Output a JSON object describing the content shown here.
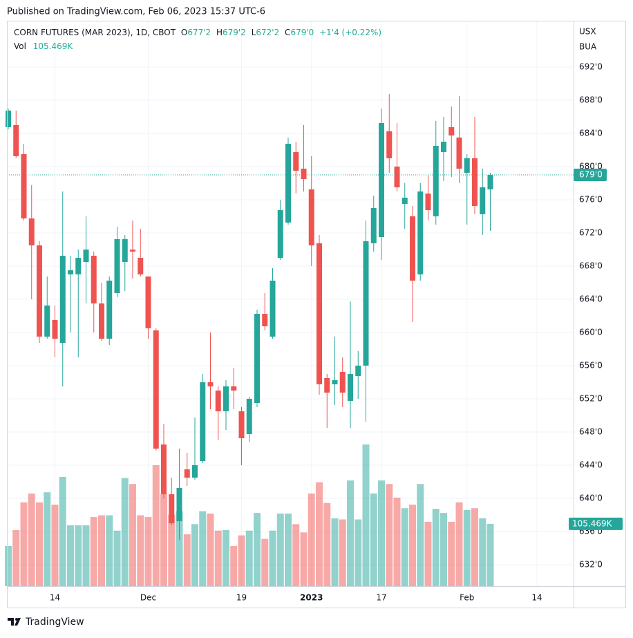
{
  "header": {
    "published": "Published on TradingView.com, Feb 06, 2023 15:37 UTC-6",
    "symbol": "CORN FUTURES (MAR 2023), 1D, CBOT",
    "o_label": "O",
    "o": "677'2",
    "h_label": "H",
    "h": "679'2",
    "l_label": "L",
    "l": "672'2",
    "c_label": "C",
    "c": "679'0",
    "change": "+1'4 (+0.22%)",
    "vol_label": "Vol",
    "vol": "105.469K",
    "currency": "USX",
    "unit": "BUA"
  },
  "footer": {
    "brand": "TradingView"
  },
  "chart_data": {
    "type": "candlestick",
    "up_color": "#26a69a",
    "down_color": "#ef5350",
    "grid": true,
    "ylim": [
      629.42,
      697.58
    ],
    "yticks": [
      {
        "value": 692,
        "label": "692'0"
      },
      {
        "value": 688,
        "label": "688'0"
      },
      {
        "value": 684,
        "label": "684'0"
      },
      {
        "value": 680,
        "label": "680'0"
      },
      {
        "value": 676,
        "label": "676'0"
      },
      {
        "value": 672,
        "label": "672'0"
      },
      {
        "value": 668,
        "label": "668'0"
      },
      {
        "value": 664,
        "label": "664'0"
      },
      {
        "value": 660,
        "label": "660'0"
      },
      {
        "value": 656,
        "label": "656'0"
      },
      {
        "value": 652,
        "label": "652'0"
      },
      {
        "value": 648,
        "label": "648'0"
      },
      {
        "value": 644,
        "label": "644'0"
      },
      {
        "value": 640,
        "label": "640'0"
      },
      {
        "value": 636,
        "label": "636'0"
      },
      {
        "value": 632,
        "label": "632'0"
      }
    ],
    "xticks": [
      {
        "value": 6,
        "label": "14"
      },
      {
        "value": 18,
        "label": "Dec"
      },
      {
        "value": 30,
        "label": "19"
      },
      {
        "value": 39,
        "label": "2023"
      },
      {
        "value": 48,
        "label": "17"
      },
      {
        "value": 59,
        "label": "Feb"
      },
      {
        "value": 68,
        "label": "14"
      }
    ],
    "open": [
      684.75,
      685,
      681.5,
      673.75,
      670.5,
      659.5,
      661.5,
      658.75,
      667,
      667,
      668.5,
      669.25,
      663.5,
      659.25,
      664.75,
      668.5,
      670,
      669,
      666.75,
      660.25,
      646.5,
      640.5,
      637.25,
      643.5,
      642.5,
      644.5,
      654,
      653,
      650.5,
      653.5,
      650.5,
      647.75,
      651.5,
      662.25,
      659.5,
      669,
      673.25,
      681.75,
      679.75,
      677.25,
      670.75,
      654.5,
      653.75,
      655.25,
      651.75,
      654.75,
      656,
      670.75,
      671.5,
      684.25,
      680,
      675.5,
      674,
      667,
      676.75,
      674,
      681.75,
      684.75,
      683.5,
      679.25,
      681,
      674.25,
      677.25
    ],
    "high": [
      687,
      686.75,
      682.75,
      677.75,
      671,
      666.75,
      663.25,
      677,
      669.25,
      670,
      674,
      669.75,
      666,
      666.75,
      672.75,
      671.75,
      673.5,
      672.5,
      666.75,
      660.5,
      649,
      642.5,
      646,
      645.5,
      649.75,
      655,
      660,
      653.5,
      654.25,
      655.75,
      651,
      652.25,
      662.75,
      664.75,
      667.75,
      676,
      683.5,
      683,
      685,
      681.25,
      671.75,
      655,
      659.5,
      657,
      663.75,
      657.75,
      673.5,
      676.5,
      687,
      688.75,
      685.25,
      678,
      675.25,
      678,
      679,
      685.5,
      686,
      687.25,
      688.5,
      681.5,
      686,
      679.75,
      679.25
    ],
    "low": [
      684.5,
      681,
      673.5,
      664,
      658.75,
      659.25,
      657,
      653.5,
      660,
      657,
      663.5,
      660,
      659,
      658.5,
      664.25,
      665,
      666.5,
      666.75,
      659.25,
      645.75,
      640,
      636.75,
      635,
      641.5,
      642.25,
      644.25,
      650.75,
      647,
      648.25,
      650.75,
      644,
      646.75,
      651,
      660.25,
      659.25,
      668.75,
      673,
      676.75,
      677,
      668,
      652.5,
      648.5,
      651.25,
      651,
      648.5,
      652,
      649.25,
      669.75,
      668.75,
      679.25,
      677,
      672.5,
      661.25,
      666.25,
      673.5,
      673,
      678.25,
      678.75,
      678,
      673,
      674.25,
      671.75,
      672.25
    ],
    "close": [
      686.75,
      681.25,
      673.75,
      670.5,
      659.5,
      663.25,
      659.25,
      669.25,
      667.5,
      669,
      670,
      663.5,
      659.25,
      666.25,
      671.25,
      671.25,
      669.75,
      667,
      660.5,
      646,
      640.5,
      637,
      641.25,
      642.5,
      644,
      654,
      653.5,
      650.5,
      653.5,
      653,
      647.25,
      652,
      662.25,
      660.75,
      666.25,
      674.75,
      682.75,
      679.5,
      678.5,
      670.5,
      653.75,
      652.75,
      654.25,
      652.75,
      655,
      656,
      671,
      675,
      685.25,
      681,
      677.5,
      676.25,
      666.25,
      677,
      674.75,
      682.5,
      683,
      683.75,
      679.75,
      681,
      675.25,
      677.5,
      679
    ],
    "volume": [
      68,
      95,
      142,
      157,
      142,
      159,
      138,
      185,
      103,
      103,
      103,
      117,
      120,
      120,
      94,
      183,
      173,
      120,
      117,
      205,
      156,
      121,
      127,
      88,
      105,
      127,
      123,
      94,
      95,
      68,
      86,
      94,
      124,
      80,
      94,
      123,
      123,
      105,
      91,
      157,
      176,
      141,
      115,
      113,
      179,
      113,
      240,
      157,
      179,
      173,
      150,
      132,
      138,
      173,
      109,
      131,
      124,
      109,
      142,
      129,
      132,
      115,
      105.469
    ],
    "last_price_label": "679'0",
    "last_volume_label": "105.469K"
  }
}
